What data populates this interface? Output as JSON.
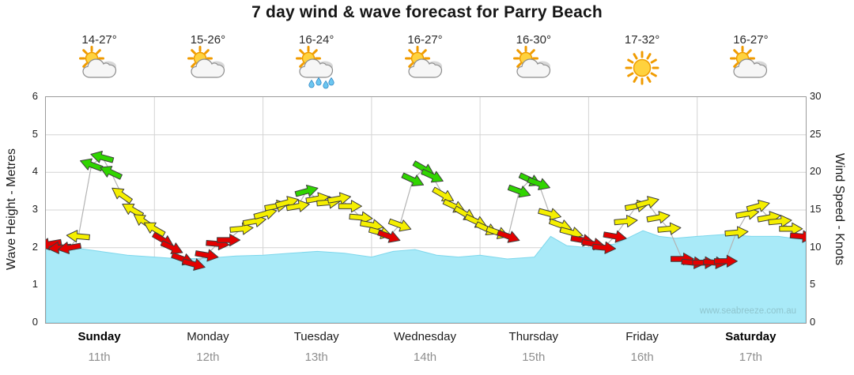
{
  "page": {
    "title": "7 day wind & wave forecast for Parry Beach",
    "watermark": "www.seabreeze.com.au"
  },
  "axes": {
    "left_label": "Wave Height - Metres",
    "right_label": "Wind Speed - Knots",
    "wave_ticks": [
      0,
      1,
      2,
      3,
      4,
      5,
      6
    ],
    "wind_ticks": [
      0,
      5,
      10,
      15,
      20,
      25,
      30
    ],
    "wave_max": 6,
    "wind_max": 30
  },
  "days": [
    {
      "name": "Sunday",
      "date": "11th",
      "temp": "14-27°",
      "icon": "sun-cloud",
      "weekend": true
    },
    {
      "name": "Monday",
      "date": "12th",
      "temp": "15-26°",
      "icon": "sun-cloud",
      "weekend": false
    },
    {
      "name": "Tuesday",
      "date": "13th",
      "temp": "16-24°",
      "icon": "sun-cloud-rain",
      "weekend": false
    },
    {
      "name": "Wednesday",
      "date": "14th",
      "temp": "16-27°",
      "icon": "sun-cloud",
      "weekend": false
    },
    {
      "name": "Thursday",
      "date": "15th",
      "temp": "16-30°",
      "icon": "sun-cloud",
      "weekend": false
    },
    {
      "name": "Friday",
      "date": "16th",
      "temp": "17-32°",
      "icon": "sun",
      "weekend": false
    },
    {
      "name": "Saturday",
      "date": "17th",
      "temp": "16-27°",
      "icon": "sun-cloud",
      "weekend": true
    }
  ],
  "chart_data": {
    "type": "area+wind-arrows",
    "title": "7 day wind & wave forecast for Parry Beach",
    "categories": [
      "Sunday 11th",
      "Monday 12th",
      "Tuesday 13th",
      "Wednesday 14th",
      "Thursday 15th",
      "Friday 16th",
      "Saturday 17th"
    ],
    "ylabel_left": "Wave Height - Metres",
    "ylabel_right": "Wind Speed - Knots",
    "ylim_wave": [
      0,
      6
    ],
    "ylim_wind": [
      0,
      30
    ],
    "grid": true,
    "colors": {
      "wave_fill": "#a9eaf8",
      "wave_edge": "#7ed7ec",
      "grid": "#d4d4d4",
      "wind_line": "#b3b3b3",
      "red": "#e30000",
      "yellow": "#f5ef00",
      "green": "#30d500"
    },
    "wave": {
      "name": "Wave Height",
      "unit": "m",
      "x_day": [
        0,
        0.25,
        0.5,
        0.75,
        1,
        1.25,
        1.5,
        1.75,
        2,
        2.25,
        2.5,
        2.75,
        3,
        3.2,
        3.4,
        3.6,
        3.8,
        4,
        4.25,
        4.5,
        4.65,
        4.8,
        5,
        5.25,
        5.5,
        5.65,
        5.8,
        6,
        6.25,
        6.5,
        6.75,
        7
      ],
      "values": [
        2.05,
        2.0,
        1.9,
        1.8,
        1.75,
        1.7,
        1.72,
        1.78,
        1.8,
        1.85,
        1.9,
        1.85,
        1.75,
        1.9,
        1.95,
        1.8,
        1.75,
        1.8,
        1.7,
        1.75,
        2.3,
        2.05,
        2.0,
        2.1,
        2.45,
        2.3,
        2.25,
        2.3,
        2.35,
        2.3,
        2.3,
        2.2
      ]
    },
    "wind": {
      "name": "Wind Speed",
      "unit": "knots",
      "point_format": [
        "day",
        "knots",
        "color",
        "arrow_rotation_deg"
      ],
      "points": [
        [
          0.04,
          10.5,
          "red",
          170
        ],
        [
          0.13,
          10,
          "red",
          175
        ],
        [
          0.22,
          10,
          "red",
          170
        ],
        [
          0.3,
          11.5,
          "yellow",
          185
        ],
        [
          0.42,
          21,
          "green",
          200
        ],
        [
          0.52,
          22,
          "green",
          195
        ],
        [
          0.6,
          20,
          "green",
          205
        ],
        [
          0.7,
          17,
          "yellow",
          215
        ],
        [
          0.8,
          15,
          "yellow",
          210
        ],
        [
          0.9,
          13.5,
          "yellow",
          215
        ],
        [
          1.0,
          12.5,
          "yellow",
          210
        ],
        [
          1.08,
          11,
          "red",
          30
        ],
        [
          1.16,
          10,
          "red",
          25
        ],
        [
          1.26,
          8.5,
          "red",
          20
        ],
        [
          1.36,
          7.8,
          "red",
          15
        ],
        [
          1.48,
          9,
          "red",
          10
        ],
        [
          1.58,
          10.5,
          "red",
          5
        ],
        [
          1.68,
          11,
          "red",
          0
        ],
        [
          1.8,
          12.5,
          "yellow",
          355
        ],
        [
          1.92,
          13.5,
          "yellow",
          350
        ],
        [
          2.02,
          14.5,
          "yellow",
          345
        ],
        [
          2.12,
          15.5,
          "yellow",
          350
        ],
        [
          2.22,
          16,
          "yellow",
          345
        ],
        [
          2.32,
          15.5,
          "yellow",
          350
        ],
        [
          2.4,
          17.5,
          "green",
          345
        ],
        [
          2.5,
          16.5,
          "yellow",
          350
        ],
        [
          2.6,
          16,
          "yellow",
          355
        ],
        [
          2.7,
          16.5,
          "yellow",
          350
        ],
        [
          2.8,
          15.5,
          "yellow",
          0
        ],
        [
          2.9,
          14,
          "yellow",
          5
        ],
        [
          3.0,
          13,
          "yellow",
          10
        ],
        [
          3.08,
          12,
          "yellow",
          15
        ],
        [
          3.16,
          11.5,
          "red",
          20
        ],
        [
          3.26,
          13,
          "yellow",
          20
        ],
        [
          3.38,
          19,
          "green",
          25
        ],
        [
          3.48,
          20.5,
          "green",
          30
        ],
        [
          3.56,
          19.5,
          "green",
          25
        ],
        [
          3.66,
          17,
          "yellow",
          30
        ],
        [
          3.76,
          15.5,
          "yellow",
          25
        ],
        [
          3.86,
          14.5,
          "yellow",
          30
        ],
        [
          3.96,
          13.5,
          "yellow",
          25
        ],
        [
          4.06,
          12.5,
          "yellow",
          25
        ],
        [
          4.16,
          12,
          "yellow",
          20
        ],
        [
          4.26,
          11.5,
          "red",
          20
        ],
        [
          4.36,
          17.5,
          "green",
          20
        ],
        [
          4.46,
          19,
          "green",
          25
        ],
        [
          4.54,
          18.5,
          "green",
          20
        ],
        [
          4.64,
          14.5,
          "yellow",
          15
        ],
        [
          4.74,
          13,
          "yellow",
          20
        ],
        [
          4.84,
          12,
          "yellow",
          15
        ],
        [
          4.94,
          11,
          "red",
          10
        ],
        [
          5.04,
          10.5,
          "red",
          10
        ],
        [
          5.14,
          10,
          "red",
          5
        ],
        [
          5.24,
          11.5,
          "red",
          10
        ],
        [
          5.34,
          13.5,
          "yellow",
          355
        ],
        [
          5.44,
          15.5,
          "yellow",
          350
        ],
        [
          5.54,
          16,
          "yellow",
          345
        ],
        [
          5.64,
          14,
          "yellow",
          350
        ],
        [
          5.74,
          12.5,
          "yellow",
          355
        ],
        [
          5.86,
          8.5,
          "red",
          0
        ],
        [
          5.96,
          8,
          "red",
          5
        ],
        [
          6.06,
          8,
          "red",
          0
        ],
        [
          6.16,
          8,
          "red",
          5
        ],
        [
          6.26,
          8.2,
          "red",
          0
        ],
        [
          6.36,
          12,
          "yellow",
          355
        ],
        [
          6.46,
          14.5,
          "yellow",
          350
        ],
        [
          6.56,
          15.5,
          "yellow",
          345
        ],
        [
          6.66,
          14,
          "yellow",
          350
        ],
        [
          6.76,
          13.5,
          "yellow",
          355
        ],
        [
          6.86,
          12.5,
          "yellow",
          0
        ],
        [
          6.96,
          11.5,
          "red",
          5
        ]
      ]
    }
  }
}
